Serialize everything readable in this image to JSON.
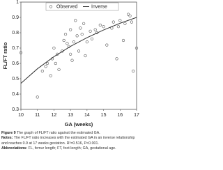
{
  "chart_data": {
    "type": "scatter",
    "xlabel": "GA (weeks)",
    "ylabel": "FL/FT ratio",
    "xlim": [
      10,
      17
    ],
    "xticks": [
      10,
      11,
      12,
      13,
      14,
      15,
      16,
      17
    ],
    "ylim": [
      0.3,
      1
    ],
    "yticks": [
      0.3,
      0.4,
      0.5,
      0.6,
      0.7,
      0.8,
      0.9,
      1
    ],
    "legend": "top",
    "grid": false,
    "series": [
      {
        "name": "Observed",
        "color": "#555555",
        "marker": "open-circle",
        "x": [
          10,
          11,
          11.3,
          11.5,
          11.6,
          11.8,
          11.9,
          12,
          12.1,
          12.2,
          12.3,
          12.5,
          12.6,
          12.7,
          12.8,
          12.9,
          13,
          13,
          13.1,
          13.2,
          13.3,
          13.4,
          13.5,
          13.6,
          13.7,
          13.8,
          13.9,
          14,
          14.2,
          14.3,
          14.5,
          14.6,
          14.8,
          15,
          15.2,
          15.5,
          15.6,
          15.8,
          15.9,
          16,
          16.2,
          16.3,
          16.5,
          16.6,
          16.7,
          16.8,
          17
        ],
        "values": [
          0.67,
          0.38,
          0.55,
          0.58,
          0.6,
          0.52,
          0.63,
          0.7,
          0.6,
          0.66,
          0.56,
          0.68,
          0.75,
          0.79,
          0.73,
          0.71,
          0.82,
          0.66,
          0.62,
          0.74,
          0.88,
          0.78,
          0.68,
          0.83,
          0.79,
          0.86,
          0.65,
          0.74,
          0.81,
          0.76,
          0.82,
          0.8,
          0.85,
          0.84,
          0.72,
          0.83,
          0.87,
          0.63,
          0.84,
          0.88,
          0.75,
          0.86,
          0.92,
          0.91,
          0.87,
          0.55,
          0.7
        ]
      },
      {
        "name": "Inverse",
        "color": "#333333",
        "marker": "line",
        "x": [
          10,
          11,
          12,
          13,
          14,
          15,
          16,
          17
        ],
        "values": [
          0.47,
          0.565,
          0.644,
          0.711,
          0.768,
          0.818,
          0.862,
          0.9
        ]
      }
    ]
  },
  "caption": {
    "figure_label": "Figure 9",
    "figure_text": "The graph of FL/FT ratio against the estimated GA.",
    "notes_label": "Notes:",
    "notes_lines": [
      "The FL/FT ratio increases with the estimated GA in an inverse relationship",
      "and reaches 0.9 at 17 weeks gestation. R²=0.516, P<0.001."
    ],
    "abbr_label": "Abbreviations:",
    "abbr_text": "FL, femur length; FT, foot length; GA, gestational age."
  }
}
